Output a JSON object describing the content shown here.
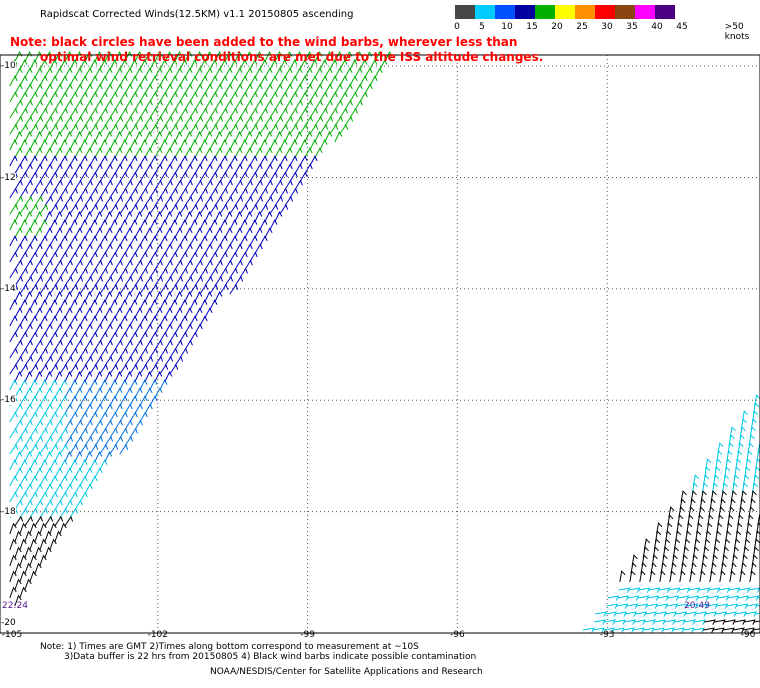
{
  "title": "Rapidscat Corrected Winds(12.5KM) v1.1 20150805 ascending",
  "note_line1": "Note: black circles have been added to the wind barbs, wherever less than",
  "note_line2": "optimal wind retrieval conditions are met due to the ISS altitude changes.",
  "legend": {
    "labels": [
      "0",
      "5",
      "10",
      "15",
      "20",
      "25",
      "30",
      "35",
      "40",
      "45",
      ">50 knots"
    ],
    "colors": [
      "#474747",
      "#00ccff",
      "#0050ff",
      "#0000a0",
      "#00b000",
      "#ffff00",
      "#ff9000",
      "#ff0000",
      "#8b4513",
      "#ff00ff",
      "#4b0082"
    ]
  },
  "y_labels": [
    "-10",
    "-12",
    "-14",
    "-16",
    "-18",
    "-20"
  ],
  "x_labels": [
    "-105",
    "-102",
    "-99",
    "-96",
    "-93",
    "-90"
  ],
  "time_left": "22:24",
  "time_right": "20:49",
  "footnote_line1": "Note: 1) Times are GMT 2)Times along bottom correspond to measurement at ~10S",
  "footnote_line2": "3)Data buffer is 22 hrs from 20150805 4) Black wind barbs indicate possible contamination",
  "credit": "NOAA/NESDIS/Center for Satellite Applications and Research",
  "map_extent": {
    "lon": [
      -105,
      -90
    ],
    "lat": [
      -20,
      -9.8
    ]
  },
  "swaths": [
    {
      "name": "west-swath",
      "corners_lonlat": [
        [
          -105,
          -9.8
        ],
        [
          -97.8,
          -9.8
        ],
        [
          -105,
          -20.3
        ]
      ]
    },
    {
      "name": "east-swath",
      "corners_lonlat": [
        [
          -90,
          -16.2
        ],
        [
          -90,
          -20
        ],
        [
          -93.5,
          -20
        ]
      ]
    }
  ],
  "wind_colors": {
    "light": "#00b000",
    "mid": "#0000c0",
    "blue": "#0070e0",
    "cyan": "#00c8e8",
    "contaminated": "#000000"
  }
}
